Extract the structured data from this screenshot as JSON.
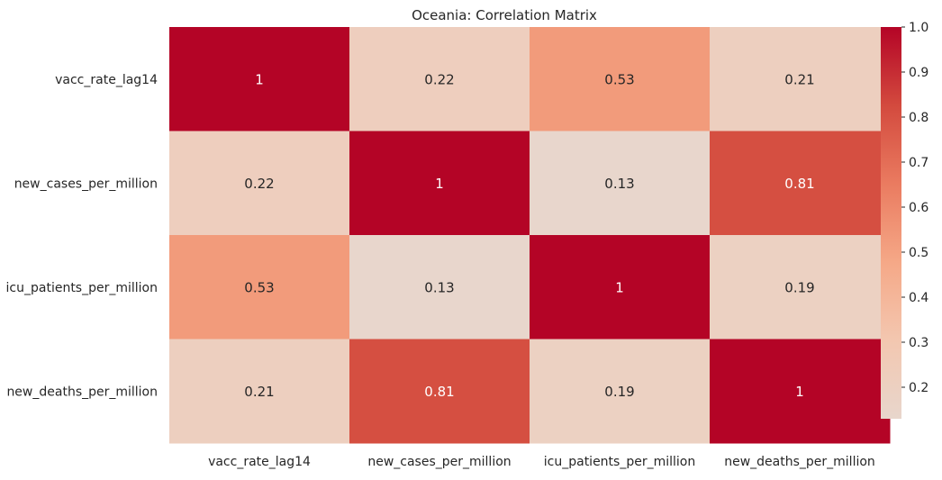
{
  "chart_data": {
    "type": "heatmap",
    "title": "Oceania: Correlation Matrix",
    "xlabel": "",
    "ylabel": "",
    "x_labels": [
      "vacc_rate_lag14",
      "new_cases_per_million",
      "icu_patients_per_million",
      "new_deaths_per_million"
    ],
    "y_labels": [
      "vacc_rate_lag14",
      "new_cases_per_million",
      "icu_patients_per_million",
      "new_deaths_per_million"
    ],
    "values": [
      [
        1.0,
        0.22,
        0.53,
        0.21
      ],
      [
        0.22,
        1.0,
        0.13,
        0.81
      ],
      [
        0.53,
        0.13,
        1.0,
        0.19
      ],
      [
        0.21,
        0.81,
        0.19,
        1.0
      ]
    ],
    "annotations": [
      [
        "1",
        "0.22",
        "0.53",
        "0.21"
      ],
      [
        "0.22",
        "1",
        "0.13",
        "0.81"
      ],
      [
        "0.53",
        "0.13",
        "1",
        "0.19"
      ],
      [
        "0.21",
        "0.81",
        "0.19",
        "1"
      ]
    ],
    "colorbar": {
      "vmin": 0.13,
      "vmax": 1.0,
      "ticks": [
        0.2,
        0.3,
        0.4,
        0.5,
        0.6,
        0.7,
        0.8,
        0.9,
        1.0
      ],
      "tick_labels": [
        "0.2",
        "0.3",
        "0.4",
        "0.5",
        "0.6",
        "0.7",
        "0.8",
        "0.9",
        "1.0"
      ],
      "colormap": "coolwarm (upper half)",
      "color_low": "#e8d6cc",
      "color_high": "#b40426"
    }
  }
}
